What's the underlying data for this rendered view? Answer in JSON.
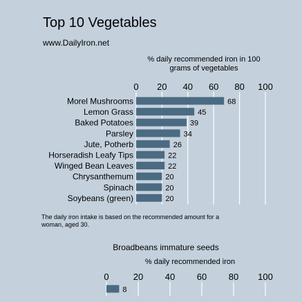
{
  "header": {
    "title": "Top 10 Vegetables",
    "subtitle": "www.DailyIron.net"
  },
  "footnote": "The daily iron intake is based on the recommended amount for a woman, aged 30.",
  "colors": {
    "background": "#c4d0dc",
    "bar": "#4a6b82",
    "gridline": "#ffffff"
  },
  "chart_data": [
    {
      "type": "bar",
      "orientation": "horizontal",
      "title": "Top 10 Vegetables",
      "subtitle": "www.DailyIron.net",
      "xlabel": "% daily recommended iron in 100 grams of vegetables",
      "ylabel": "",
      "xlim": [
        0,
        100
      ],
      "xticks": [
        0,
        20,
        40,
        60,
        80,
        100
      ],
      "grid": true,
      "categories": [
        "Morel Mushrooms",
        "Lemon Grass",
        "Baked Potatoes",
        "Parsley",
        "Jute, Potherb",
        "Horseradish Leafy Tips",
        "Winged Bean Leaves",
        "Chrysanthemum",
        "Spinach",
        "Soybeans (green)"
      ],
      "values": [
        68,
        45,
        39,
        34,
        26,
        22,
        22,
        20,
        20,
        20
      ]
    },
    {
      "type": "bar",
      "orientation": "horizontal",
      "title": "Broadbeans immature seeds",
      "xlabel": "% daily recommended iron",
      "xlim": [
        0,
        100
      ],
      "xticks": [
        0,
        20,
        40,
        60,
        80,
        100
      ],
      "grid": true,
      "categories": [
        ""
      ],
      "values": [
        8
      ]
    }
  ]
}
